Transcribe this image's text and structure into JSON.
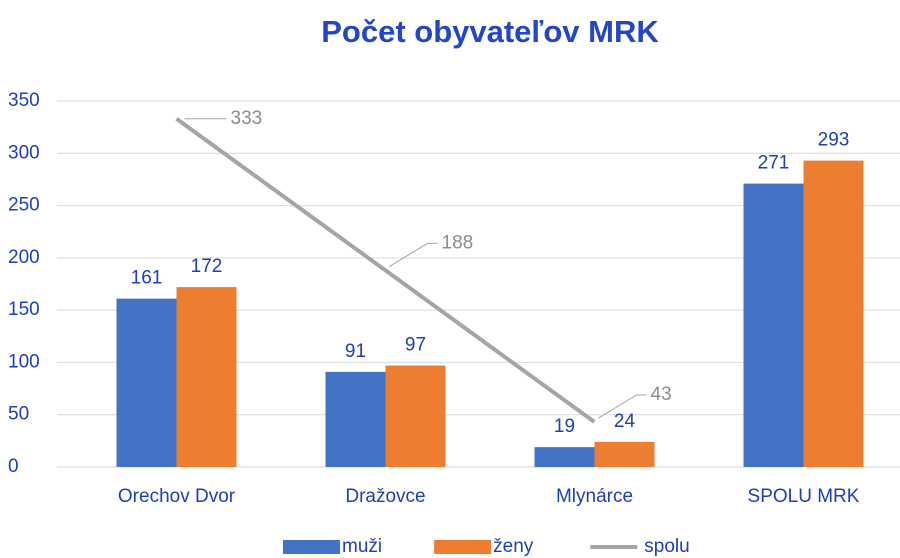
{
  "chart_data": {
    "type": "bar",
    "title": "Počet obyvateľov MRK",
    "categories": [
      "Orechov Dvor",
      "Dražovce",
      "Mlynárce",
      "SPOLU MRK"
    ],
    "series": [
      {
        "name": "muži",
        "color": "#4472c4",
        "type": "bar",
        "values": [
          161,
          91,
          19,
          271
        ]
      },
      {
        "name": "ženy",
        "color": "#ed7d31",
        "type": "bar",
        "values": [
          172,
          97,
          24,
          293
        ]
      },
      {
        "name": "spolu",
        "color": "#a5a5a5",
        "type": "line",
        "values": [
          333,
          188,
          43,
          null
        ]
      }
    ],
    "ylim": [
      0,
      350
    ],
    "yticks": [
      0,
      50,
      100,
      150,
      200,
      250,
      300,
      350
    ],
    "grid": true,
    "legend": "bottom"
  }
}
